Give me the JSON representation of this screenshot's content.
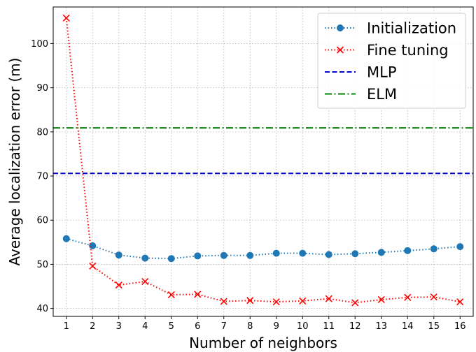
{
  "chart_data": {
    "type": "line",
    "title": "",
    "xlabel": "Number of neighbors",
    "ylabel": "Average localization error (m)",
    "x": [
      1,
      2,
      3,
      4,
      5,
      6,
      7,
      8,
      9,
      10,
      11,
      12,
      13,
      14,
      15,
      16
    ],
    "xticks": [
      "1",
      "2",
      "3",
      "4",
      "5",
      "6",
      "7",
      "8",
      "9",
      "10",
      "11",
      "12",
      "13",
      "14",
      "15",
      "16"
    ],
    "xlim": [
      0.5,
      16.5
    ],
    "ylim": [
      38.2,
      108.3
    ],
    "yticks": [
      40,
      50,
      60,
      70,
      80,
      90,
      100
    ],
    "yticklabels": [
      "40",
      "50",
      "60",
      "70",
      "80",
      "90",
      "100"
    ],
    "grid": true,
    "legend_position": "top-right",
    "series": [
      {
        "name": "Initialization",
        "color": "#1f77b4",
        "line_style": "dotted",
        "marker": "circle",
        "values": [
          55.8,
          54.2,
          52.1,
          51.4,
          51.3,
          51.9,
          52.0,
          52.0,
          52.5,
          52.5,
          52.2,
          52.4,
          52.7,
          53.1,
          53.5,
          54.0
        ]
      },
      {
        "name": "Fine tuning",
        "color": "#ff0000",
        "line_style": "dotted",
        "marker": "x",
        "values": [
          105.8,
          49.6,
          45.3,
          46.1,
          43.1,
          43.2,
          41.6,
          41.8,
          41.5,
          41.7,
          42.2,
          41.3,
          42.0,
          42.5,
          42.6,
          41.5
        ]
      },
      {
        "name": "MLP",
        "color": "#0000cc",
        "line_style": "dashed",
        "marker": "none",
        "constant": 70.6
      },
      {
        "name": "ELM",
        "color": "#008000",
        "line_style": "dashdot",
        "marker": "none",
        "constant": 80.9
      }
    ]
  }
}
